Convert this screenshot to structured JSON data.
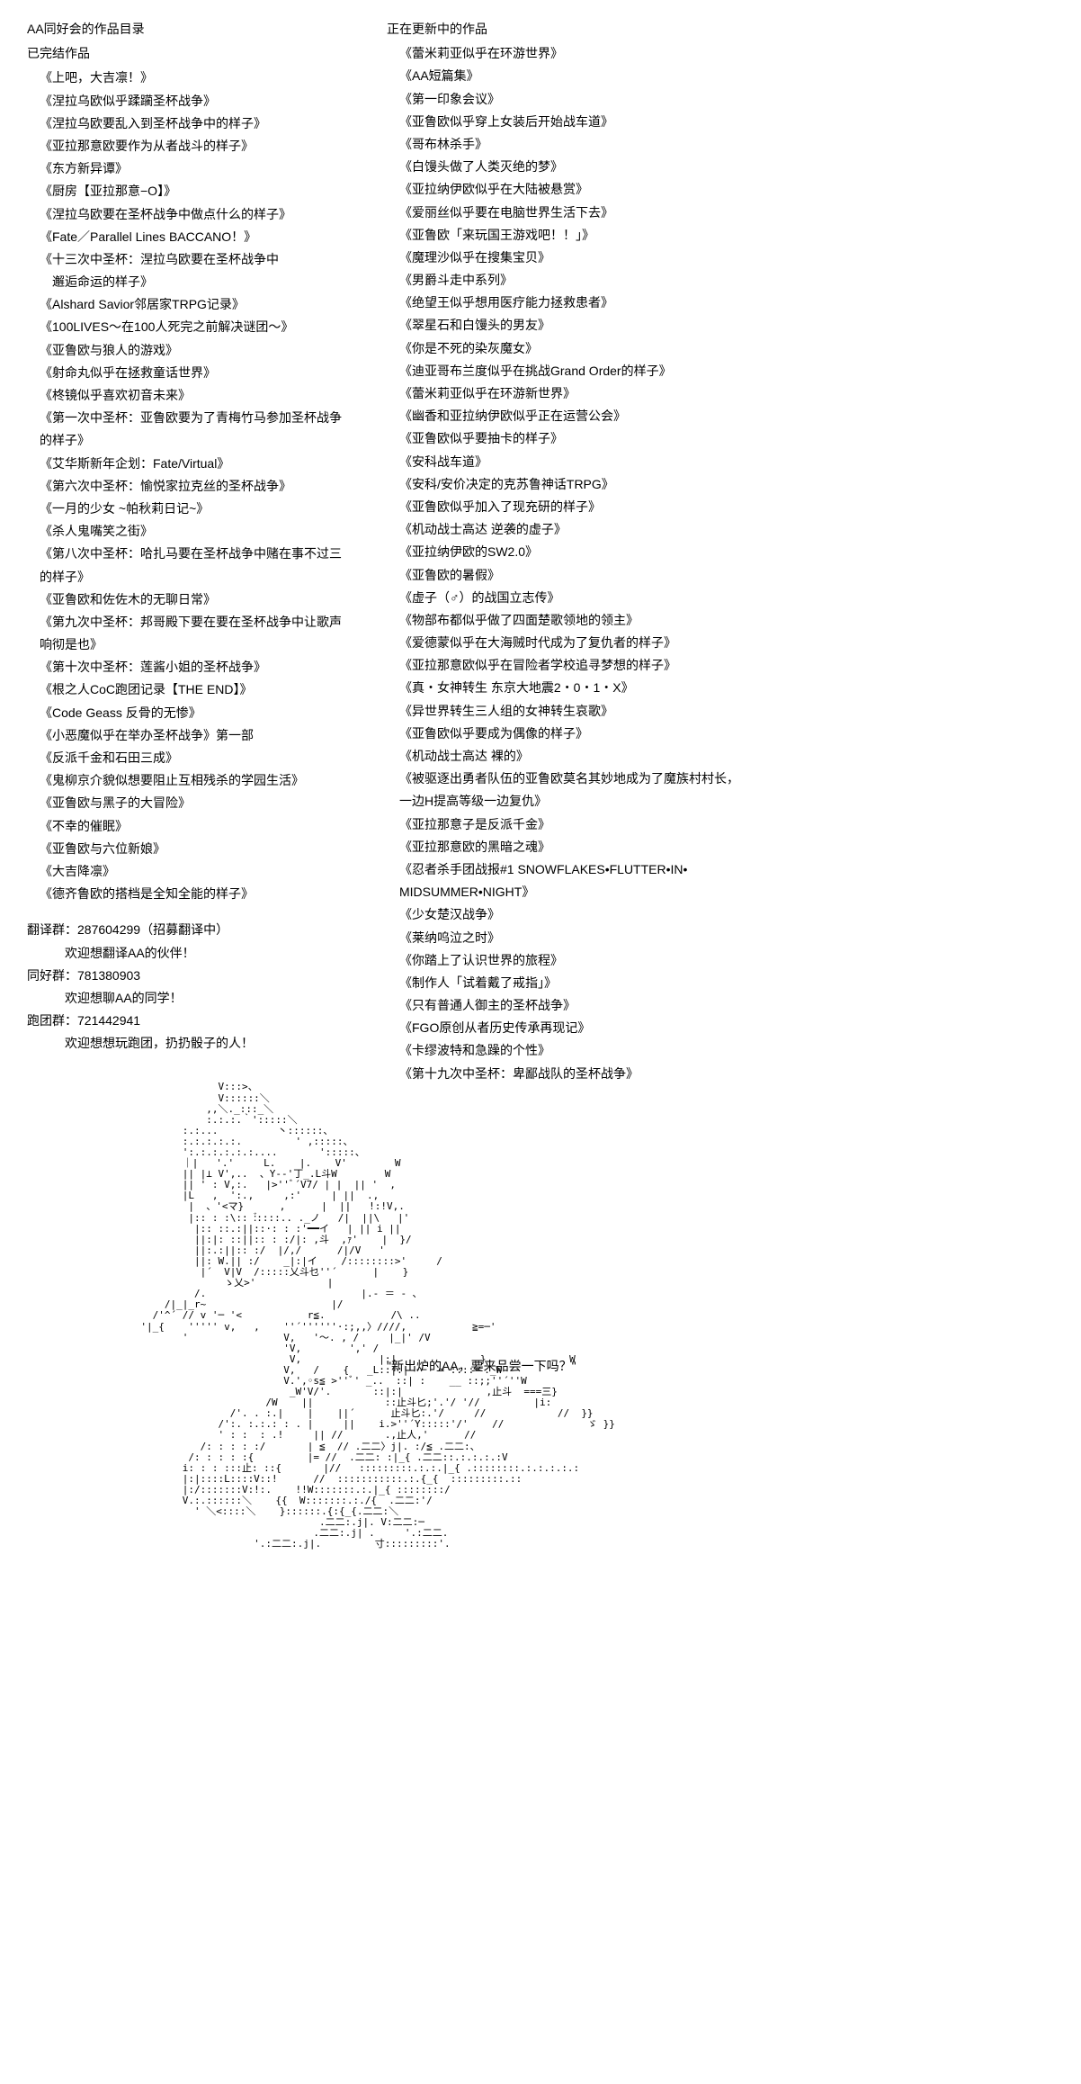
{
  "left": {
    "header": "AA同好会的作品目录",
    "completed_title": "已完结作品",
    "completed_works": [
      "《上吧，大吉凛！》",
      "《涅拉乌欧似乎蹂躏圣杯战争》",
      "《涅拉乌欧要乱入到圣杯战争中的样子》",
      "《亚拉那意欧要作为从者战斗的样子》",
      "《东方新异谭》",
      "《厨房【亚拉那意−O】》",
      "《涅拉乌欧要在圣杯战争中做点什么的样子》",
      "《Fate／Parallel Lines BACCANO！》",
      "《十三次中圣杯：涅拉乌欧要在圣杯战争中",
      "　邂逅命运的样子》",
      "《Alshard Savior邻居家TRPG记录》",
      "《100LIVES～在100人死完之前解决谜团～》",
      "《亚鲁欧与狼人的游戏》",
      "《射命丸似乎在拯救童话世界》",
      "《柊镜似乎喜欢初音未来》",
      "《第一次中圣杯：亚鲁欧要为了青梅竹马参加圣杯战争的样子》",
      "《艾华斯新年企划：Fate/Virtual》",
      "《第六次中圣杯：愉悦家拉克丝的圣杯战争》",
      "《一月的少女 ~帕秋莉日记~》",
      "《杀人鬼嘴笑之街》",
      "《第八次中圣杯：哈扎马要在圣杯战争中赌在事不过三的样子》",
      "《亚鲁欧和佐佐木的无聊日常》",
      "《第九次中圣杯：邦哥殿下要在要在圣杯战争中让歌声响彻是也》",
      "《第十次中圣杯：莲酱小姐的圣杯战争》",
      "《根之人CoC跑团记录【THE END】》",
      "《Code Geass 反骨的无惨》",
      "《小恶魔似乎在举办圣杯战争》第一部",
      "《反派千金和石田三成》",
      "《鬼柳京介貌似想要阻止互相残杀的学园生活》",
      "《亚鲁欧与黑子的大冒险》",
      "《不幸的催眠》",
      "《亚鲁欧与六位新娘》",
      "《大吉降凛》",
      "《德齐鲁欧的搭档是全知全能的样子》"
    ],
    "groups": [
      {
        "label": "翻译群：287604299（招募翻译中）",
        "sub": "欢迎想翻译AA的伙伴！"
      },
      {
        "label": "同好群：781380903",
        "sub": "欢迎想聊AA的同学！"
      },
      {
        "label": "跑团群：721442941",
        "sub": "欢迎想想玩跑团，扔扔骰子的人！"
      }
    ]
  },
  "right": {
    "updating_title": "正在更新中的作品",
    "updating_works": [
      "《蕾米莉亚似乎在环游世界》",
      "《AA短篇集》",
      "《第一印象会议》",
      "《亚鲁欧似乎穿上女装后开始战车道》",
      "《哥布林杀手》",
      "《白馒头做了人类灭绝的梦》",
      "《亚拉纳伊欧似乎在大陆被悬赏》",
      "《爱丽丝似乎要在电脑世界生活下去》",
      "《亚鲁欧「来玩国王游戏吧！！」》",
      "《魔理沙似乎在搜集宝贝》",
      "《男爵斗走中系列》",
      "《绝望王似乎想用医疗能力拯救患者》",
      "《翠星石和白馒头的男友》",
      "《你是不死的染灰魔女》",
      "《迪亚哥布兰度似乎在挑战Grand Order的样子》",
      "《蕾米莉亚似乎在环游新世界》",
      "《幽香和亚拉纳伊欧似乎正在运营公会》",
      "《亚鲁欧似乎要抽卡的样子》",
      "《安科战车道》",
      "《安科/安价决定的克苏鲁神话TRPG》",
      "《亚鲁欧似乎加入了现充研的样子》",
      "《机动战士高达 逆袭的虚子》",
      "《亚拉纳伊欧的SW2.0》",
      "《亚鲁欧的暑假》",
      "《虚子（♂）的战国立志传》",
      "《物部布都似乎做了四面楚歌领地的领主》",
      "《爱德蒙似乎在大海贼时代成为了复仇者的样子》",
      "《亚拉那意欧似乎在冒险者学校追寻梦想的样子》",
      "《真・女神转生 东京大地震2・0・1・X》",
      "《异世界转生三人组的女神转生哀歌》",
      "《亚鲁欧似乎要成为偶像的样子》",
      "《机动战士高达 裸的》",
      "《被驱逐出勇者队伍的亚鲁欧莫名其妙地成为了魔族村村长，",
      "一边H提高等级一边复仇》",
      "《亚拉那意子是反派千金》",
      "《亚拉那意欧的黑暗之魂》",
      "《忍者杀手团战报#1 SNOWFLAKES•FLUTTER•IN•",
      "MIDSUMMER•NIGHT》",
      "《少女楚汉战争》",
      "《莱纳呜泣之时》",
      "《你踏上了认识世界的旅程》",
      "《制作人「试着戴了戒指」》",
      "《只有普通人御主的圣杯战争》",
      "《FGO原创从者历史传承再现记》",
      "《卡缪波特和急躁的个性》",
      "《第十九次中圣杯：卑鄙战队的圣杯战争》"
    ],
    "quote": "\"新出炉的AA，要来品尝一下吗？\""
  },
  "ascii": "                    V:::>、\n                    V::::::＼\n                  ,,＼._:::_＼\n                  :.:.:.｀':::::＼\n              :.:...          丶::::::、\n              :.:.:.:.:.         ' ,:::::、\n              ':.:.:.:.:.:....       ':::::、\n              ｜|   '.'     L.    |.    V'        W\n              || |⊥ V',..  、Y--'丁_.L斗W        W\n              || ' : V,:.   |>''ﾞ´V7/ | |  || '  ,\n              |L   ,  ':.,     ,:'     | ||  .,\n               |  、'<マ}      ,      |  ||   !:!V,.\n               |:: : :\\:: :゙::::.. ._ノ   /|  ||\\   |'\n                |:: ::.:||::·: : :'━━イ   | || i ||\n                ||:|: ::||:: : :/|: ,斗  ,ｧ'    |  }/\n                ||:.:||:: :/  |/,/      /|/V   '\n                ||: W.|| :/    _|:|イ    /::::::::>'     /\n                 |´  V|V  /:::::乂斗乜''´      |    }\n                     ゝ乂>'            |\n                /.                          |.‐ ＝ ‐ ､\n           /|_|_r~                     |/\n         /'^´ // v '─ '<           r≦.           /\\ ..\n       '|_{    ''''' v,   ,    ''´''''''·:;,,〉////,           ≧=─'\n              '                V,   '〜. , /     |_|' /V\n                               'V,        ',' /\n                                V,             |:|              }              W\n                               V,   /    {   _L::|:| ·─  = ::::＝._W\n                               V.',◦s≦ >''ﾞ' _..  ::| :    __ ::;;''´''W\n                                _W'V/'.       ::|:|              ,止斗  ===三}\n                            /W    ||            ::止斗匕;'.'/ '//         |i:\n                      /'. . :.|    |    ||´      止斗匕:.'/     //            //  }}\n                    /':. :.:.: : . |     ||    i.>''´Y:::::'/'    //              ゞ }}\n                    ' : :  : .!     || //       .,止人,'      //\n                 /: : : : :/       | ≦  // .二二〉j|. :/≦ .二二:、\n               /: : : : :{         |= //  .二二: :|_{ .二二::.:.:.:.:V\n              i: : : :::止: ::{       |//   :::::::::.:.:.|_{ .::::::::.:.:.:.:.:\n              |:|::::L::::V::!      //  :::::::::::.:.{_{  :::::::::.::\n              |:/:::::::V:!:.    !!W:::::::.:.|_{ ::::::::/\n              V.:.::::::＼    {{  W:::::::.:./{  .二二:'/\n                ' ＼<::::＼    }::::::.{:{_{.二二:＼\n                                     .二二:.j|. V:二二:─\n                                    .二二:.j| .     '.:二二.\n                          '.:二二:.j|.         寸:::::::::'."
}
